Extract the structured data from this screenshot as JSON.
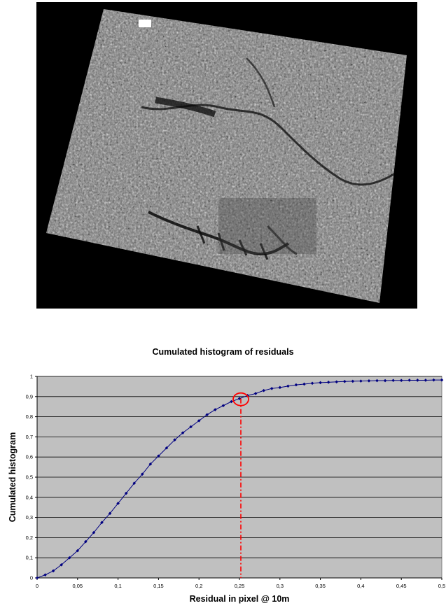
{
  "image": {
    "description_icon": "satellite-image-icon"
  },
  "chart_data": {
    "type": "line",
    "title": "Cumulated histogram of residuals",
    "xlabel": "Residual in pixel @ 10m",
    "ylabel": "Cumulated histogram",
    "xlim": [
      0,
      0.5
    ],
    "ylim": [
      0,
      1
    ],
    "x_ticks": [
      0,
      0.05,
      0.1,
      0.15,
      0.2,
      0.25,
      0.3,
      0.35,
      0.4,
      0.45,
      0.5
    ],
    "x_tick_labels": [
      "0",
      "0,05",
      "0,1",
      "0,15",
      "0,2",
      "0,25",
      "0,3",
      "0,35",
      "0,4",
      "0,45",
      "0,5"
    ],
    "y_ticks": [
      0,
      0.1,
      0.2,
      0.3,
      0.4,
      0.5,
      0.6,
      0.7,
      0.8,
      0.9,
      1
    ],
    "y_tick_labels": [
      "0",
      "0,1",
      "0,2",
      "0,3",
      "0,4",
      "0,5",
      "0,6",
      "0,7",
      "0,8",
      "0,9",
      "1"
    ],
    "grid": true,
    "background_color": "#c0c0c0",
    "series_color": "#000080",
    "highlight": {
      "x": 0.25,
      "y": 0.89,
      "color": "#ff0000"
    },
    "x": [
      0,
      0.01,
      0.02,
      0.03,
      0.04,
      0.05,
      0.06,
      0.07,
      0.08,
      0.09,
      0.1,
      0.11,
      0.12,
      0.13,
      0.14,
      0.15,
      0.16,
      0.17,
      0.18,
      0.19,
      0.2,
      0.21,
      0.22,
      0.23,
      0.24,
      0.25,
      0.26,
      0.27,
      0.28,
      0.29,
      0.3,
      0.31,
      0.32,
      0.33,
      0.34,
      0.35,
      0.36,
      0.37,
      0.38,
      0.39,
      0.4,
      0.41,
      0.42,
      0.43,
      0.44,
      0.45,
      0.46,
      0.47,
      0.48,
      0.49,
      0.5
    ],
    "y": [
      0.0,
      0.015,
      0.035,
      0.065,
      0.1,
      0.135,
      0.18,
      0.225,
      0.275,
      0.32,
      0.37,
      0.42,
      0.47,
      0.515,
      0.565,
      0.605,
      0.645,
      0.685,
      0.72,
      0.75,
      0.78,
      0.81,
      0.835,
      0.855,
      0.875,
      0.89,
      0.905,
      0.915,
      0.93,
      0.94,
      0.945,
      0.952,
      0.958,
      0.962,
      0.966,
      0.969,
      0.971,
      0.973,
      0.975,
      0.976,
      0.977,
      0.978,
      0.979,
      0.979,
      0.98,
      0.98,
      0.981,
      0.981,
      0.981,
      0.982,
      0.982
    ]
  }
}
